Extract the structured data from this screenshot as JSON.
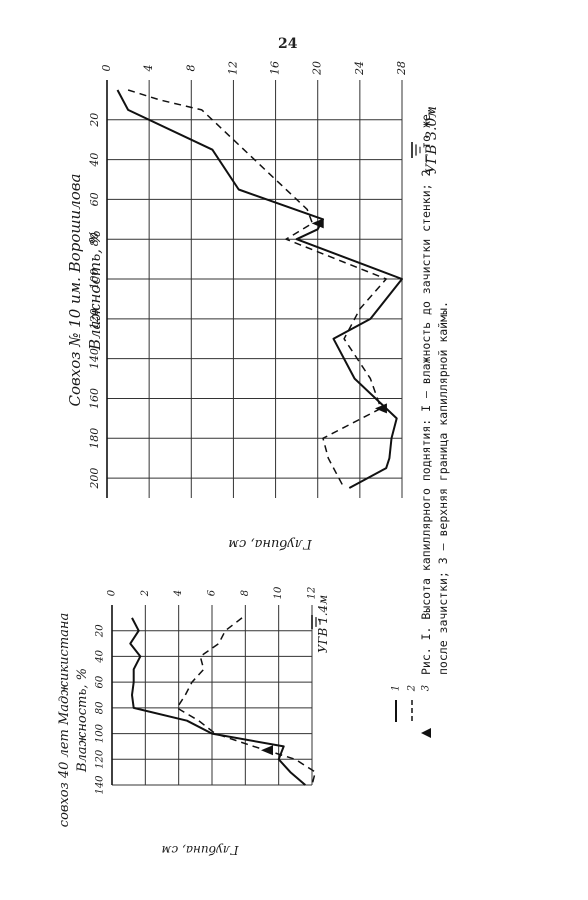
{
  "page_number": "24",
  "caption": {
    "line1": "Рис. I. Высота капиллярного поднятия: I – влажность до зачистки стенки; 2 – то же,",
    "line2": "после зачистки; 3 – верхняя граница капиллярной каймы."
  },
  "legend": {
    "items": [
      "1",
      "2",
      "3"
    ]
  },
  "chart_data": [
    {
      "type": "line",
      "title": "совхоз 40 лет Маджикистана",
      "ylabel": "Влажность, %",
      "xlabel": "Глубина, см",
      "x_range": [
        0,
        140
      ],
      "y_range": [
        0,
        12
      ],
      "x_ticks": [
        "20",
        "40",
        "60",
        "80",
        "100",
        "120",
        "140"
      ],
      "y_ticks": [
        "0",
        "2",
        "4",
        "6",
        "8",
        "10",
        "12"
      ],
      "water_table_label": "УГВ 1.4м",
      "series": [
        {
          "name": "1",
          "style": "solid",
          "x": [
            10,
            20,
            30,
            40,
            50,
            60,
            70,
            80,
            90,
            100,
            110,
            120,
            130,
            140
          ],
          "y": [
            1.2,
            1.6,
            1.1,
            1.7,
            1.3,
            1.3,
            1.2,
            1.3,
            4.5,
            6.0,
            10.3,
            10.0,
            10.7,
            11.6
          ]
        },
        {
          "name": "2",
          "style": "dashed",
          "x": [
            10,
            20,
            30,
            40,
            50,
            60,
            70,
            80,
            90,
            100,
            110,
            120,
            130,
            140
          ],
          "y": [
            7.8,
            6.8,
            6.4,
            5.3,
            5.5,
            4.8,
            4.4,
            3.9,
            5.2,
            6.2,
            8.5,
            11.0,
            12.2,
            12.0
          ]
        },
        {
          "name": "3",
          "style": "marker",
          "x": [
            113
          ],
          "y": [
            9.3
          ]
        }
      ]
    },
    {
      "type": "line",
      "title": "Совхоз № 10 им. Ворошилова",
      "ylabel": "Влажность, %",
      "xlabel": "Глубина, см",
      "x_range": [
        0,
        210
      ],
      "y_range": [
        0,
        28
      ],
      "x_ticks": [
        "20",
        "40",
        "60",
        "80",
        "100",
        "120",
        "140",
        "160",
        "180",
        "200"
      ],
      "y_ticks": [
        "0",
        "4",
        "8",
        "12",
        "16",
        "20",
        "24",
        "28"
      ],
      "water_table_label": "УГВ 3.0м",
      "series": [
        {
          "name": "1",
          "style": "solid",
          "x": [
            5,
            15,
            35,
            55,
            70,
            75,
            80,
            100,
            120,
            130,
            150,
            170,
            180,
            190,
            195,
            205
          ],
          "y": [
            1,
            2,
            10,
            12.5,
            20.5,
            20,
            18,
            28,
            25,
            21.5,
            23.5,
            27.5,
            27,
            26.8,
            26.5,
            23
          ]
        },
        {
          "name": "2",
          "style": "dashed",
          "x": [
            5,
            10,
            15,
            30,
            45,
            65,
            72,
            80,
            100,
            115,
            130,
            150,
            165,
            180,
            190,
            205
          ],
          "y": [
            2,
            5,
            9,
            12,
            15,
            19,
            19.5,
            17,
            26.5,
            24,
            22.5,
            25,
            26,
            20.5,
            21,
            22.5
          ]
        },
        {
          "name": "3",
          "style": "marker",
          "x": [
            72,
            165
          ],
          "y": [
            20,
            26
          ]
        }
      ]
    }
  ]
}
